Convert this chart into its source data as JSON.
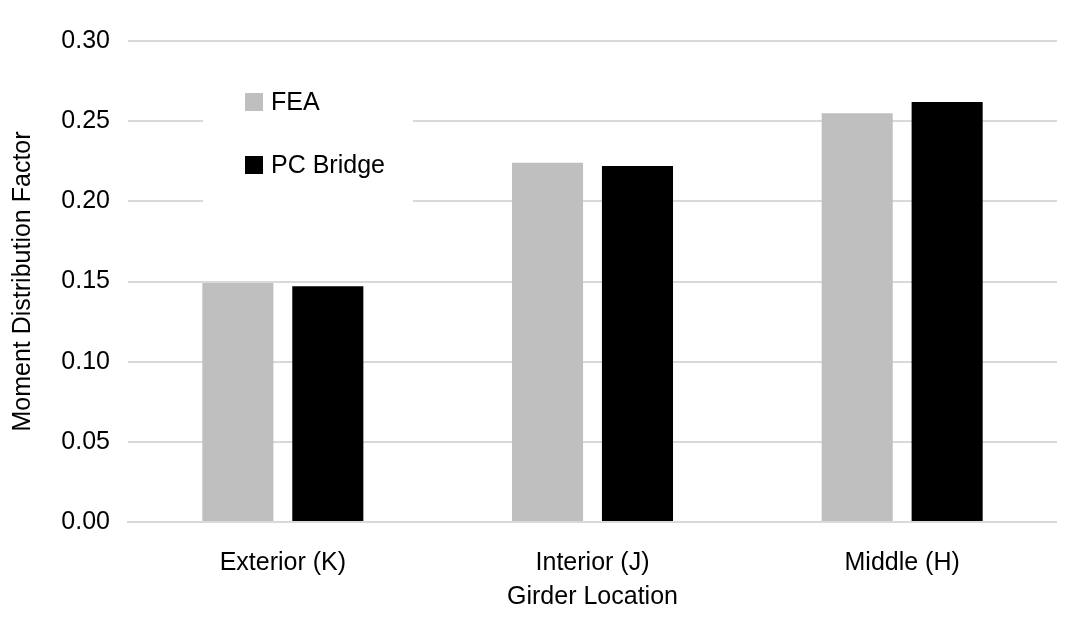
{
  "chart_data": {
    "type": "bar",
    "xlabel": "Girder Location",
    "ylabel": "Moment Distribution Factor",
    "categories": [
      "Exterior (K)",
      "Interior (J)",
      "Middle (H)"
    ],
    "series": [
      {
        "name": "FEA",
        "color": "#bfbfbf",
        "values": [
          0.149,
          0.224,
          0.255
        ]
      },
      {
        "name": "PC Bridge",
        "color": "#000000",
        "values": [
          0.147,
          0.222,
          0.262
        ]
      }
    ],
    "ylim": [
      0,
      0.3
    ],
    "yticks": [
      {
        "value": 0,
        "label": "0.00"
      },
      {
        "value": 0.05,
        "label": "0.05"
      },
      {
        "value": 0.1,
        "label": "0.10"
      },
      {
        "value": 0.15,
        "label": "0.15"
      },
      {
        "value": 0.2,
        "label": "0.20"
      },
      {
        "value": 0.25,
        "label": "0.25"
      },
      {
        "value": 0.3,
        "label": "0.30"
      }
    ],
    "grid": "y",
    "legend": "top left"
  }
}
